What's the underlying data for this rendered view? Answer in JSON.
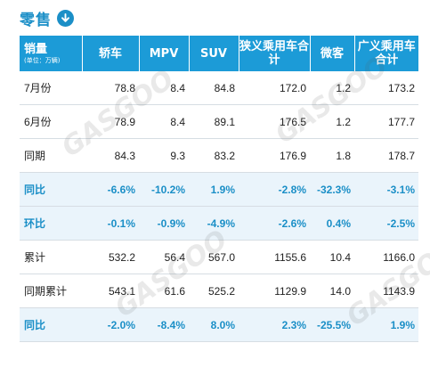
{
  "header": {
    "title": "零售",
    "icon": "arrow-down-circle-icon"
  },
  "table": {
    "columns": [
      {
        "label": "销量",
        "unit": "(单位：万辆)"
      },
      {
        "label": "轿车"
      },
      {
        "label": "MPV"
      },
      {
        "label": "SUV"
      },
      {
        "label": "狭义乘用车合计"
      },
      {
        "label": "微客"
      },
      {
        "label": "广义乘用车合计"
      }
    ],
    "rows": [
      {
        "label": "7月份",
        "values": [
          "78.8",
          "8.4",
          "84.8",
          "172.0",
          "1.2",
          "173.2"
        ],
        "pct": false
      },
      {
        "label": "6月份",
        "values": [
          "78.9",
          "8.4",
          "89.1",
          "176.5",
          "1.2",
          "177.7"
        ],
        "pct": false
      },
      {
        "label": "同期",
        "values": [
          "84.3",
          "9.3",
          "83.2",
          "176.9",
          "1.8",
          "178.7"
        ],
        "pct": false
      },
      {
        "label": "同比",
        "values": [
          "-6.6%",
          "-10.2%",
          "1.9%",
          "-2.8%",
          "-32.3%",
          "-3.1%"
        ],
        "pct": true
      },
      {
        "label": "环比",
        "values": [
          "-0.1%",
          "-0.9%",
          "-4.9%",
          "-2.6%",
          "0.4%",
          "-2.5%"
        ],
        "pct": true
      },
      {
        "label": "累计",
        "values": [
          "532.2",
          "56.4",
          "567.0",
          "1155.6",
          "10.4",
          "1166.0"
        ],
        "pct": false
      },
      {
        "label": "同期累计",
        "values": [
          "543.1",
          "61.6",
          "525.2",
          "1129.9",
          "14.0",
          "1143.9"
        ],
        "pct": false
      },
      {
        "label": "同比",
        "values": [
          "-2.0%",
          "-8.4%",
          "8.0%",
          "2.3%",
          "-25.5%",
          "1.9%"
        ],
        "pct": true
      }
    ]
  }
}
